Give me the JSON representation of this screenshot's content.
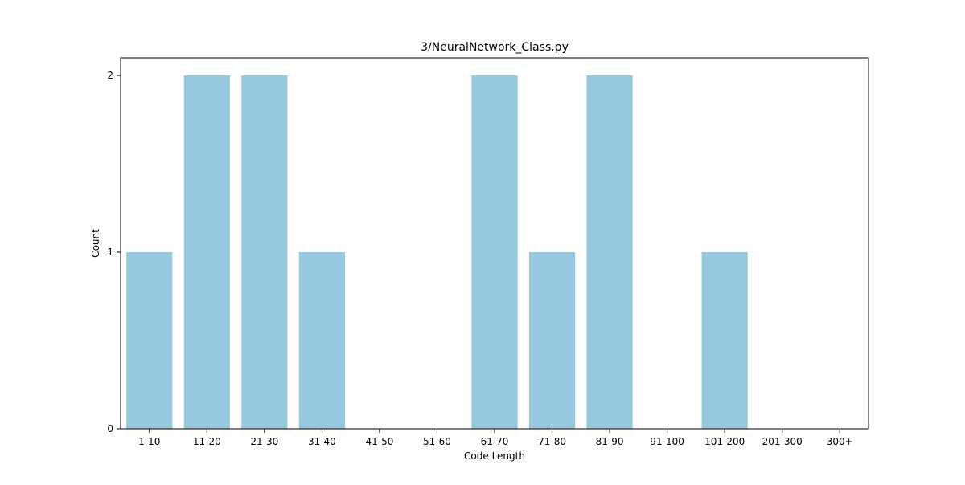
{
  "chart_data": {
    "type": "bar",
    "title": "3/NeuralNetwork_Class.py",
    "xlabel": "Code Length",
    "ylabel": "Count",
    "categories": [
      "1-10",
      "11-20",
      "21-30",
      "31-40",
      "41-50",
      "51-60",
      "61-70",
      "71-80",
      "81-90",
      "91-100",
      "101-200",
      "201-300",
      "300+"
    ],
    "values": [
      1,
      2,
      2,
      1,
      0,
      0,
      2,
      1,
      2,
      0,
      1,
      0,
      0
    ],
    "yticks": [
      0,
      1,
      2
    ],
    "ylim": [
      0,
      2.1
    ],
    "grid": false,
    "bar_color": "#96c9df"
  }
}
